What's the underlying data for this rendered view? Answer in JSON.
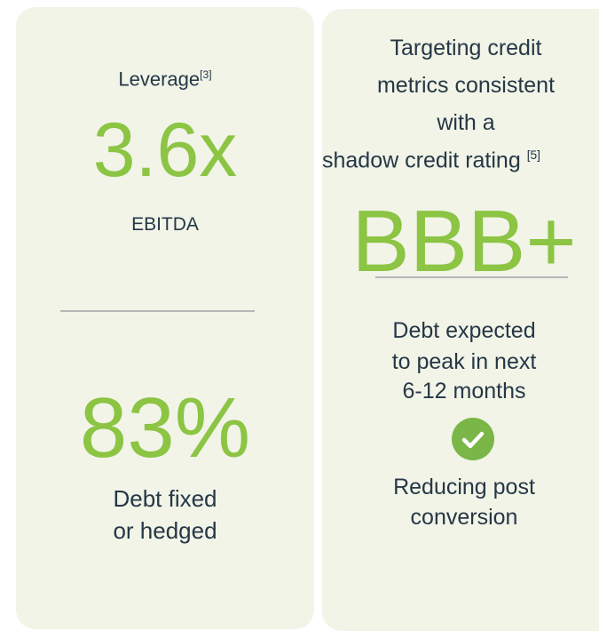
{
  "left": {
    "label": "Leverage",
    "label_note": "[3]",
    "value": "3.6x",
    "unit": "EBITDA",
    "value2": "83%",
    "caption2": [
      "Debt fixed",
      "or hedged"
    ]
  },
  "right": {
    "heading": [
      "Targeting credit",
      "metrics consistent",
      "with a",
      "shadow credit rating"
    ],
    "heading_note": "[5]",
    "rating": "BBB+",
    "text": [
      "Debt expected",
      "to peak in next",
      "6-12 months"
    ],
    "check_text": [
      "Reducing post",
      "conversion"
    ]
  }
}
